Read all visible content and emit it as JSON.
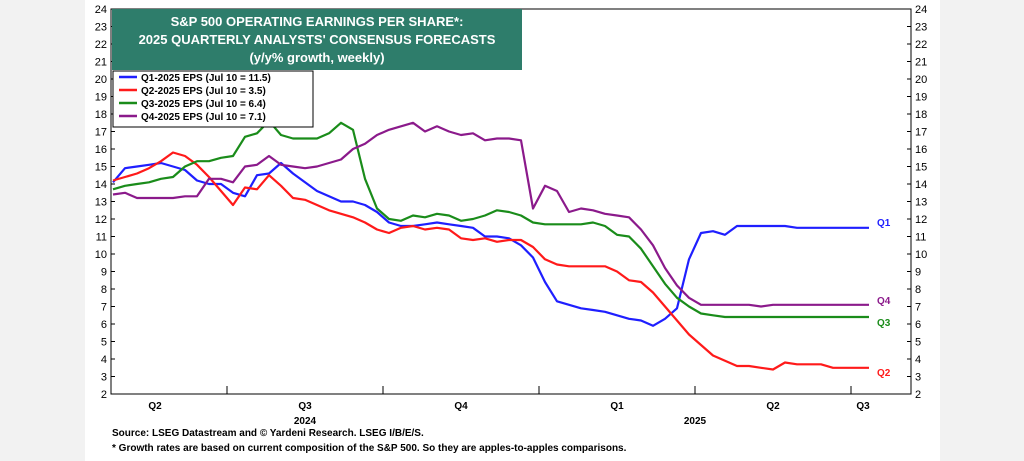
{
  "chart_data": {
    "type": "line",
    "title_lines": [
      "S&P 500 OPERATING EARNINGS PER SHARE*:",
      "2025 QUARTERLY ANALYSTS' CONSENSUS FORECASTS",
      "(y/y% growth, weekly)"
    ],
    "ylim": [
      2,
      24
    ],
    "y_ticks": [
      "2",
      "3",
      "4",
      "5",
      "6",
      "7",
      "8",
      "9",
      "10",
      "11",
      "12",
      "13",
      "14",
      "15",
      "16",
      "17",
      "18",
      "19",
      "20",
      "21",
      "22",
      "23",
      "24"
    ],
    "x_quarter_labels": [
      "Q2",
      "Q3",
      "Q4",
      "Q1",
      "Q2",
      "Q3"
    ],
    "x_year_labels": [
      "2024",
      "2025"
    ],
    "legend_placement": "top-left",
    "colors": {
      "title_bg": "#2e7d6b",
      "q1": "#1f1fff",
      "q2": "#ff1a1a",
      "q3": "#1a8c1a",
      "q4": "#8b1a8b"
    },
    "series": [
      {
        "name": "Q1-2025 EPS (Jul 10 = 11.5)",
        "end_label": "Q1",
        "color": "#1f1fff",
        "x": [
          0,
          1,
          2,
          3,
          4,
          5,
          6,
          7,
          8,
          9,
          10,
          11,
          12,
          13,
          14,
          15,
          16,
          17,
          18,
          19,
          20,
          21,
          22,
          23,
          24,
          25,
          26,
          27,
          28,
          29,
          30,
          31,
          32,
          33,
          34,
          35,
          36,
          37,
          38,
          39,
          40,
          41,
          42,
          43,
          44,
          45,
          46,
          47,
          48,
          49,
          50,
          51,
          52,
          53,
          54,
          55,
          56,
          57,
          58,
          59,
          60,
          61,
          62,
          63
        ],
        "values": [
          14.1,
          14.9,
          15.0,
          15.1,
          15.2,
          15.0,
          14.8,
          14.2,
          14.0,
          14.0,
          13.5,
          13.3,
          14.5,
          14.6,
          15.2,
          14.6,
          14.1,
          13.6,
          13.3,
          13.0,
          13.0,
          12.8,
          12.4,
          11.8,
          11.6,
          11.6,
          11.7,
          11.8,
          11.7,
          11.6,
          11.5,
          11.0,
          11.0,
          10.9,
          10.5,
          9.8,
          8.4,
          7.3,
          7.1,
          6.9,
          6.8,
          6.7,
          6.5,
          6.3,
          6.2,
          5.9,
          6.3,
          6.9,
          9.7,
          11.2,
          11.3,
          11.1,
          11.6,
          11.6,
          11.6,
          11.6,
          11.6,
          11.5,
          11.5,
          11.5,
          11.5,
          11.5,
          11.5,
          11.5
        ]
      },
      {
        "name": "Q2-2025 EPS (Jul 10 = 3.5)",
        "end_label": "Q2",
        "color": "#ff1a1a",
        "x": [
          0,
          1,
          2,
          3,
          4,
          5,
          6,
          7,
          8,
          9,
          10,
          11,
          12,
          13,
          14,
          15,
          16,
          17,
          18,
          19,
          20,
          21,
          22,
          23,
          24,
          25,
          26,
          27,
          28,
          29,
          30,
          31,
          32,
          33,
          34,
          35,
          36,
          37,
          38,
          39,
          40,
          41,
          42,
          43,
          44,
          45,
          46,
          47,
          48,
          49,
          50,
          51,
          52,
          53,
          54,
          55,
          56,
          57,
          58,
          59,
          60,
          61,
          62,
          63
        ],
        "values": [
          14.2,
          14.4,
          14.6,
          14.9,
          15.3,
          15.8,
          15.6,
          15.1,
          14.4,
          13.6,
          12.8,
          13.8,
          13.7,
          14.5,
          13.9,
          13.2,
          13.1,
          12.8,
          12.5,
          12.3,
          12.1,
          11.8,
          11.4,
          11.2,
          11.5,
          11.6,
          11.4,
          11.5,
          11.4,
          10.9,
          10.8,
          10.9,
          10.7,
          10.8,
          10.8,
          10.4,
          9.7,
          9.4,
          9.3,
          9.3,
          9.3,
          9.3,
          9.0,
          8.5,
          8.4,
          7.8,
          7.0,
          6.2,
          5.4,
          4.8,
          4.2,
          3.9,
          3.6,
          3.6,
          3.5,
          3.4,
          3.8,
          3.7,
          3.7,
          3.7,
          3.5,
          3.5,
          3.5,
          3.5
        ]
      },
      {
        "name": "Q3-2025 EPS (Jul 10 = 6.4)",
        "end_label": "Q3",
        "color": "#1a8c1a",
        "x": [
          0,
          1,
          2,
          3,
          4,
          5,
          6,
          7,
          8,
          9,
          10,
          11,
          12,
          13,
          14,
          15,
          16,
          17,
          18,
          19,
          20,
          21,
          22,
          23,
          24,
          25,
          26,
          27,
          28,
          29,
          30,
          31,
          32,
          33,
          34,
          35,
          36,
          37,
          38,
          39,
          40,
          41,
          42,
          43,
          44,
          45,
          46,
          47,
          48,
          49,
          50,
          51,
          52,
          53,
          54,
          55,
          56,
          57,
          58,
          59,
          60,
          61,
          62,
          63
        ],
        "values": [
          13.7,
          13.9,
          14.0,
          14.1,
          14.3,
          14.4,
          15.0,
          15.3,
          15.3,
          15.5,
          15.6,
          16.7,
          16.9,
          17.6,
          16.8,
          16.6,
          16.6,
          16.6,
          16.9,
          17.5,
          17.1,
          14.3,
          12.6,
          12.0,
          11.9,
          12.2,
          12.1,
          12.3,
          12.2,
          11.9,
          12.0,
          12.2,
          12.5,
          12.4,
          12.2,
          11.8,
          11.7,
          11.7,
          11.7,
          11.7,
          11.8,
          11.6,
          11.1,
          11.0,
          10.3,
          9.3,
          8.3,
          7.5,
          7.0,
          6.6,
          6.5,
          6.4,
          6.4,
          6.4,
          6.4,
          6.4,
          6.4,
          6.4,
          6.4,
          6.4,
          6.4,
          6.4,
          6.4,
          6.4
        ]
      },
      {
        "name": "Q4-2025 EPS (Jul 10 = 7.1)",
        "end_label": "Q4",
        "color": "#8b1a8b",
        "x": [
          0,
          1,
          2,
          3,
          4,
          5,
          6,
          7,
          8,
          9,
          10,
          11,
          12,
          13,
          14,
          15,
          16,
          17,
          18,
          19,
          20,
          21,
          22,
          23,
          24,
          25,
          26,
          27,
          28,
          29,
          30,
          31,
          32,
          33,
          34,
          35,
          36,
          37,
          38,
          39,
          40,
          41,
          42,
          43,
          44,
          45,
          46,
          47,
          48,
          49,
          50,
          51,
          52,
          53,
          54,
          55,
          56,
          57,
          58,
          59,
          60,
          61,
          62,
          63
        ],
        "values": [
          13.4,
          13.5,
          13.2,
          13.2,
          13.2,
          13.2,
          13.3,
          13.3,
          14.3,
          14.3,
          14.1,
          15.0,
          15.1,
          15.6,
          15.1,
          15.0,
          14.9,
          15.0,
          15.2,
          15.4,
          16.0,
          16.3,
          16.8,
          17.1,
          17.3,
          17.5,
          17.0,
          17.3,
          17.0,
          16.8,
          16.9,
          16.5,
          16.6,
          16.6,
          16.5,
          12.6,
          13.9,
          13.6,
          12.4,
          12.6,
          12.5,
          12.3,
          12.2,
          12.1,
          11.4,
          10.5,
          9.2,
          8.2,
          7.5,
          7.1,
          7.1,
          7.1,
          7.1,
          7.1,
          7.0,
          7.1,
          7.1,
          7.1,
          7.1,
          7.1,
          7.1,
          7.1,
          7.1,
          7.1
        ]
      }
    ]
  },
  "footnotes": {
    "source": "Source: LSEG Datastream and © Yardeni Research. LSEG I/B/E/S.",
    "note": "* Growth rates are based on current composition of the S&P 500. So they are apples-to-apples comparisons."
  }
}
